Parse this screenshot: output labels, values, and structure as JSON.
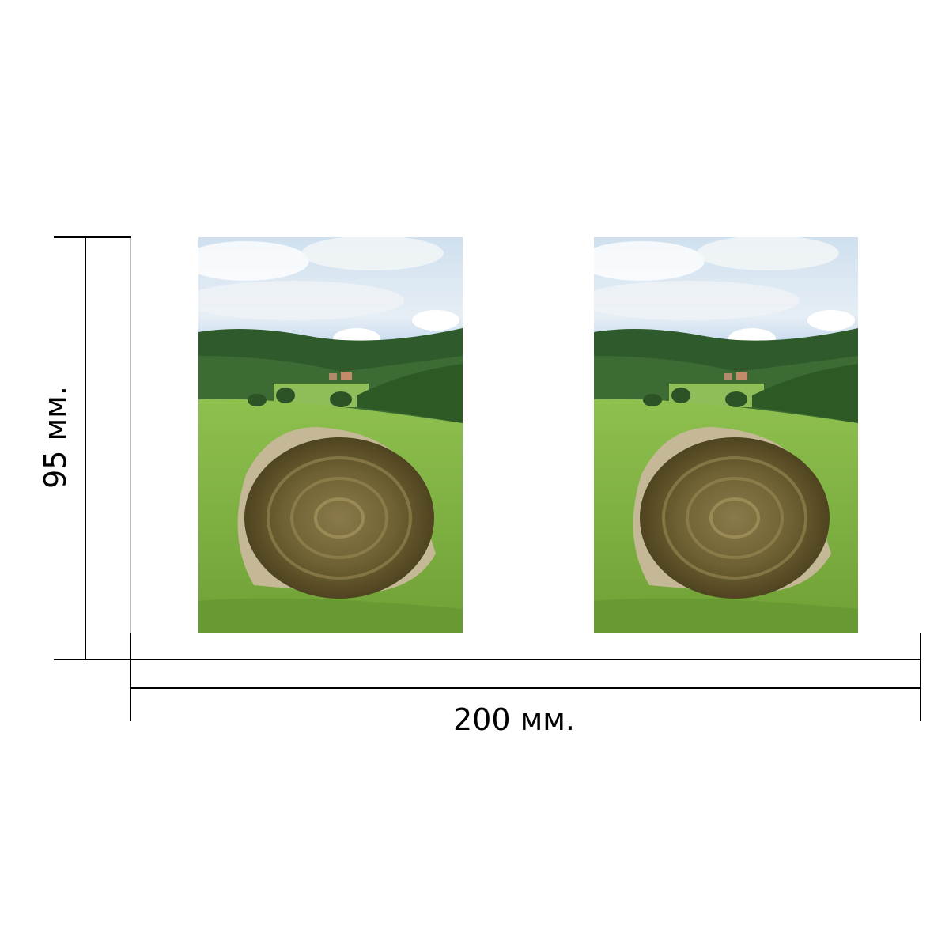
{
  "dimensions": {
    "width_label": "200 мм.",
    "height_label": "95 мм."
  },
  "panels": [
    {
      "name": "left-panel",
      "subject": "hay-bale-field"
    },
    {
      "name": "right-panel",
      "subject": "hay-bale-field"
    }
  ]
}
